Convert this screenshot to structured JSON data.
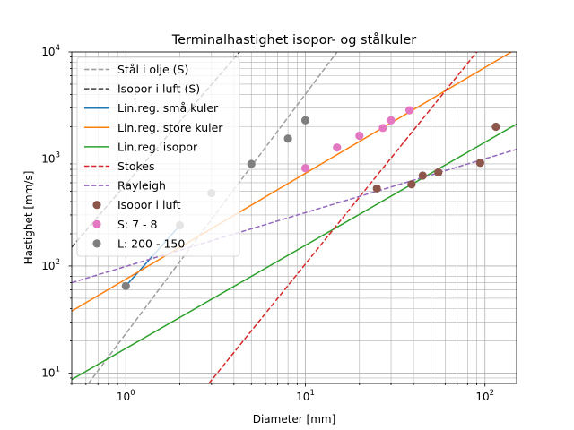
{
  "chart_data": {
    "type": "scatter",
    "title": "Terminalhastighet isopor- og stålkuler",
    "xlabel": "Diameter [mm]",
    "ylabel": "Hastighet [mm/s]",
    "xscale": "log",
    "yscale": "log",
    "xlim": [
      0.5,
      150
    ],
    "ylim": [
      8,
      10000
    ],
    "grid": "major and minor",
    "legend_position": "upper-left",
    "x_ticks": [
      {
        "value": 1,
        "base": "10",
        "exp": "0"
      },
      {
        "value": 10,
        "base": "10",
        "exp": "1"
      },
      {
        "value": 100,
        "base": "10",
        "exp": "2"
      }
    ],
    "y_ticks": [
      {
        "value": 10,
        "base": "10",
        "exp": "1"
      },
      {
        "value": 100,
        "base": "10",
        "exp": "2"
      },
      {
        "value": 1000,
        "base": "10",
        "exp": "3"
      },
      {
        "value": 10000,
        "base": "10",
        "exp": "4"
      }
    ],
    "lines": [
      {
        "name": "Stål i olje (S)",
        "color": "#9e9e9e",
        "dash": "dashed",
        "points": [
          [
            0.62,
            8
          ],
          [
            15,
            10000
          ]
        ]
      },
      {
        "name": "Isopor i luft (S)",
        "color": "#404040",
        "dash": "dashed",
        "points": [
          [
            0.5,
            150
          ],
          [
            4.3,
            10000
          ]
        ]
      },
      {
        "name": "Lin.reg. små kuler",
        "color": "#1f77b4",
        "dash": "solid",
        "points": [
          [
            1,
            65
          ],
          [
            2,
            240
          ]
        ]
      },
      {
        "name": "Lin.reg. store kuler",
        "color": "#ff7f0e",
        "dash": "solid",
        "points": [
          [
            0.5,
            38
          ],
          [
            150,
            10700
          ]
        ]
      },
      {
        "name": "Lin.reg. isopor",
        "color": "#2ca02c",
        "dash": "solid",
        "points": [
          [
            0.5,
            8.7
          ],
          [
            150,
            2120
          ]
        ]
      },
      {
        "name": "Stokes",
        "color": "#d62728",
        "dash": "dashed",
        "points": [
          [
            2.9,
            8
          ],
          [
            90,
            10000
          ]
        ]
      },
      {
        "name": "Rayleigh",
        "color": "#9467bd",
        "dash": "dashed",
        "points": [
          [
            0.5,
            70
          ],
          [
            150,
            1230
          ]
        ]
      }
    ],
    "series": [
      {
        "name": "Isopor i luft",
        "color": "#8c564b",
        "x": [
          25,
          39,
          45,
          55,
          94,
          115
        ],
        "y": [
          530,
          580,
          700,
          750,
          920,
          2000
        ]
      },
      {
        "name": "S: 7 - 8",
        "color": "#e377c2",
        "x": [
          10,
          15,
          20,
          27,
          30,
          38
        ],
        "y": [
          820,
          1280,
          1650,
          1950,
          2300,
          2850
        ]
      },
      {
        "name": "L: 200 - 150",
        "color": "#7f7f7f",
        "x": [
          1,
          2,
          3,
          5,
          8,
          10
        ],
        "y": [
          65,
          240,
          480,
          900,
          1550,
          2300
        ]
      }
    ]
  }
}
